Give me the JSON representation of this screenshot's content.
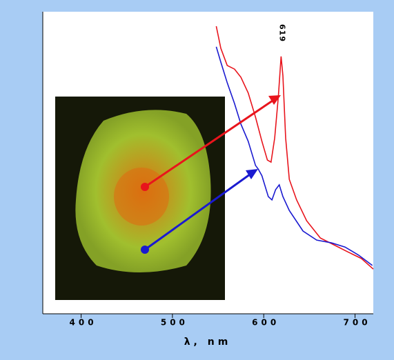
{
  "chart_data": {
    "type": "line",
    "x_label": "λ, nm",
    "annotations": [
      {
        "text": "619"
      }
    ],
    "xlim": [
      358,
      720
    ],
    "ylim": [
      0,
      100
    ],
    "xticks": [
      400,
      500,
      600,
      700
    ],
    "series": [
      {
        "color": "#e8141c",
        "x": [
          548,
          553,
          560,
          568,
          575,
          583,
          591,
          598,
          604,
          608,
          612,
          616,
          619,
          621,
          624,
          628,
          636,
          647,
          662,
          677,
          692,
          707,
          720
        ],
        "values": [
          95.2,
          87.9,
          82.2,
          81,
          78.3,
          73.1,
          65.1,
          57.1,
          50.9,
          50.2,
          58.2,
          71.9,
          85.2,
          78.8,
          58.2,
          44.5,
          37.7,
          30.8,
          25.1,
          22.8,
          20.5,
          18.3,
          14.8
        ]
      },
      {
        "color": "#1a1ad0",
        "x": [
          548,
          553,
          560,
          568,
          575,
          583,
          591,
          594,
          598,
          605,
          609,
          613,
          617,
          621,
          628,
          643,
          658,
          674,
          689,
          704,
          719
        ],
        "values": [
          88.4,
          83.3,
          76.5,
          69.6,
          62.8,
          57.1,
          49.1,
          47.9,
          45.7,
          38.8,
          37.7,
          41.1,
          42.7,
          38.8,
          34.2,
          27.4,
          24.4,
          23.5,
          22.1,
          19.4,
          16
        ]
      }
    ]
  }
}
